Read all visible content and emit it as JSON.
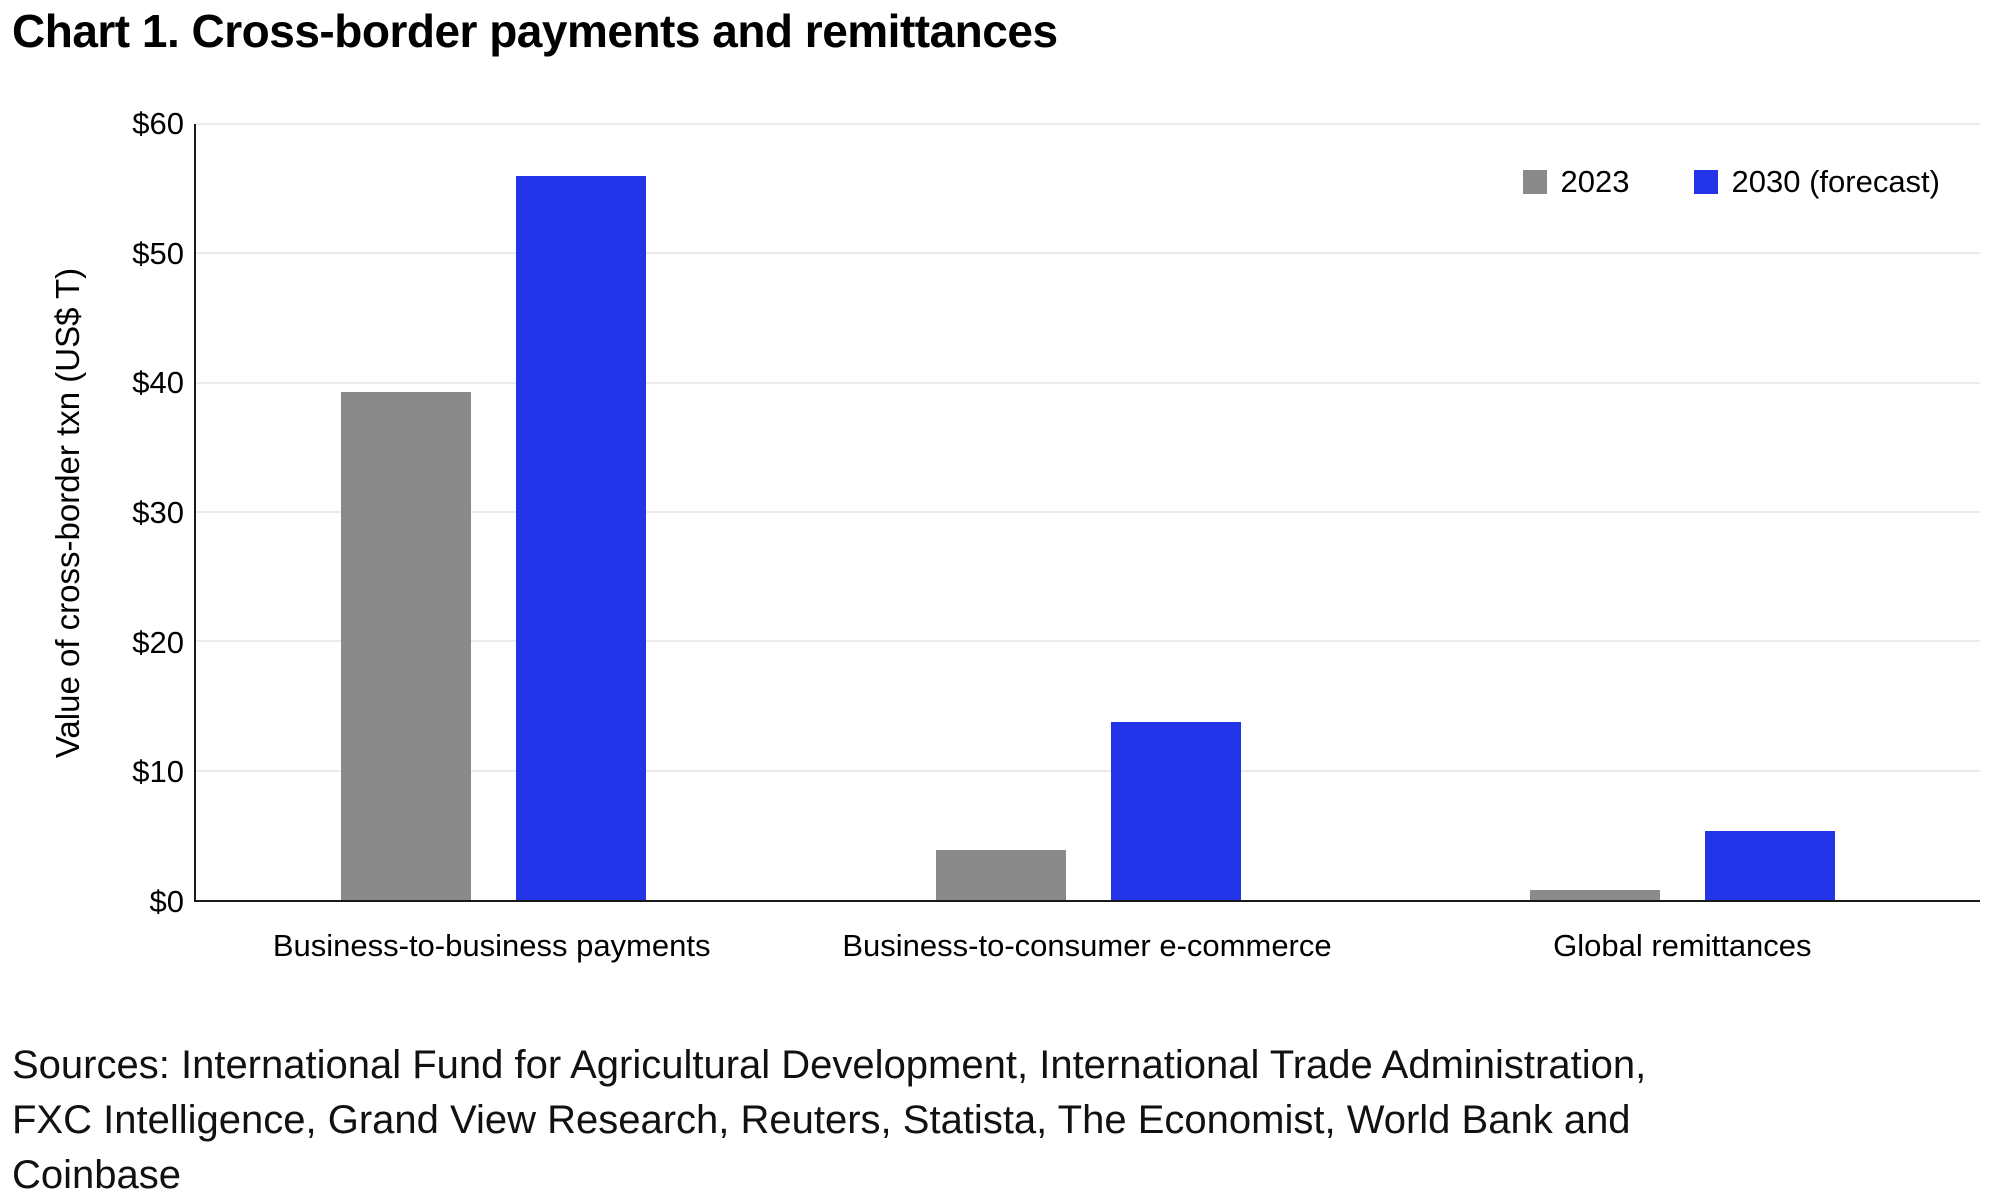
{
  "chart_data": {
    "type": "bar",
    "title": "Chart 1. Cross-border payments and remittances",
    "ylabel": "Value of cross-border txn (US$ T)",
    "xlabel": "",
    "ylim": [
      0,
      60
    ],
    "ytick_step": 10,
    "ytick_prefix": "$",
    "grid": true,
    "legend_position": "top-right",
    "categories": [
      "Business-to-business payments",
      "Business-to-consumer e-commerce",
      "Global remittances"
    ],
    "series": [
      {
        "name": "2023",
        "color": "#8a8a8a",
        "values": [
          39.3,
          3.9,
          0.8
        ]
      },
      {
        "name": "2030 (forecast)",
        "color": "#2434e8",
        "values": [
          56.0,
          13.8,
          5.3
        ]
      }
    ]
  },
  "sources": {
    "lines": [
      "Sources: International Fund for Agricultural Development, International Trade Administration,",
      "FXC Intelligence, Grand View Research, Reuters, Statista, The Economist, World Bank and",
      "Coinbase"
    ]
  }
}
